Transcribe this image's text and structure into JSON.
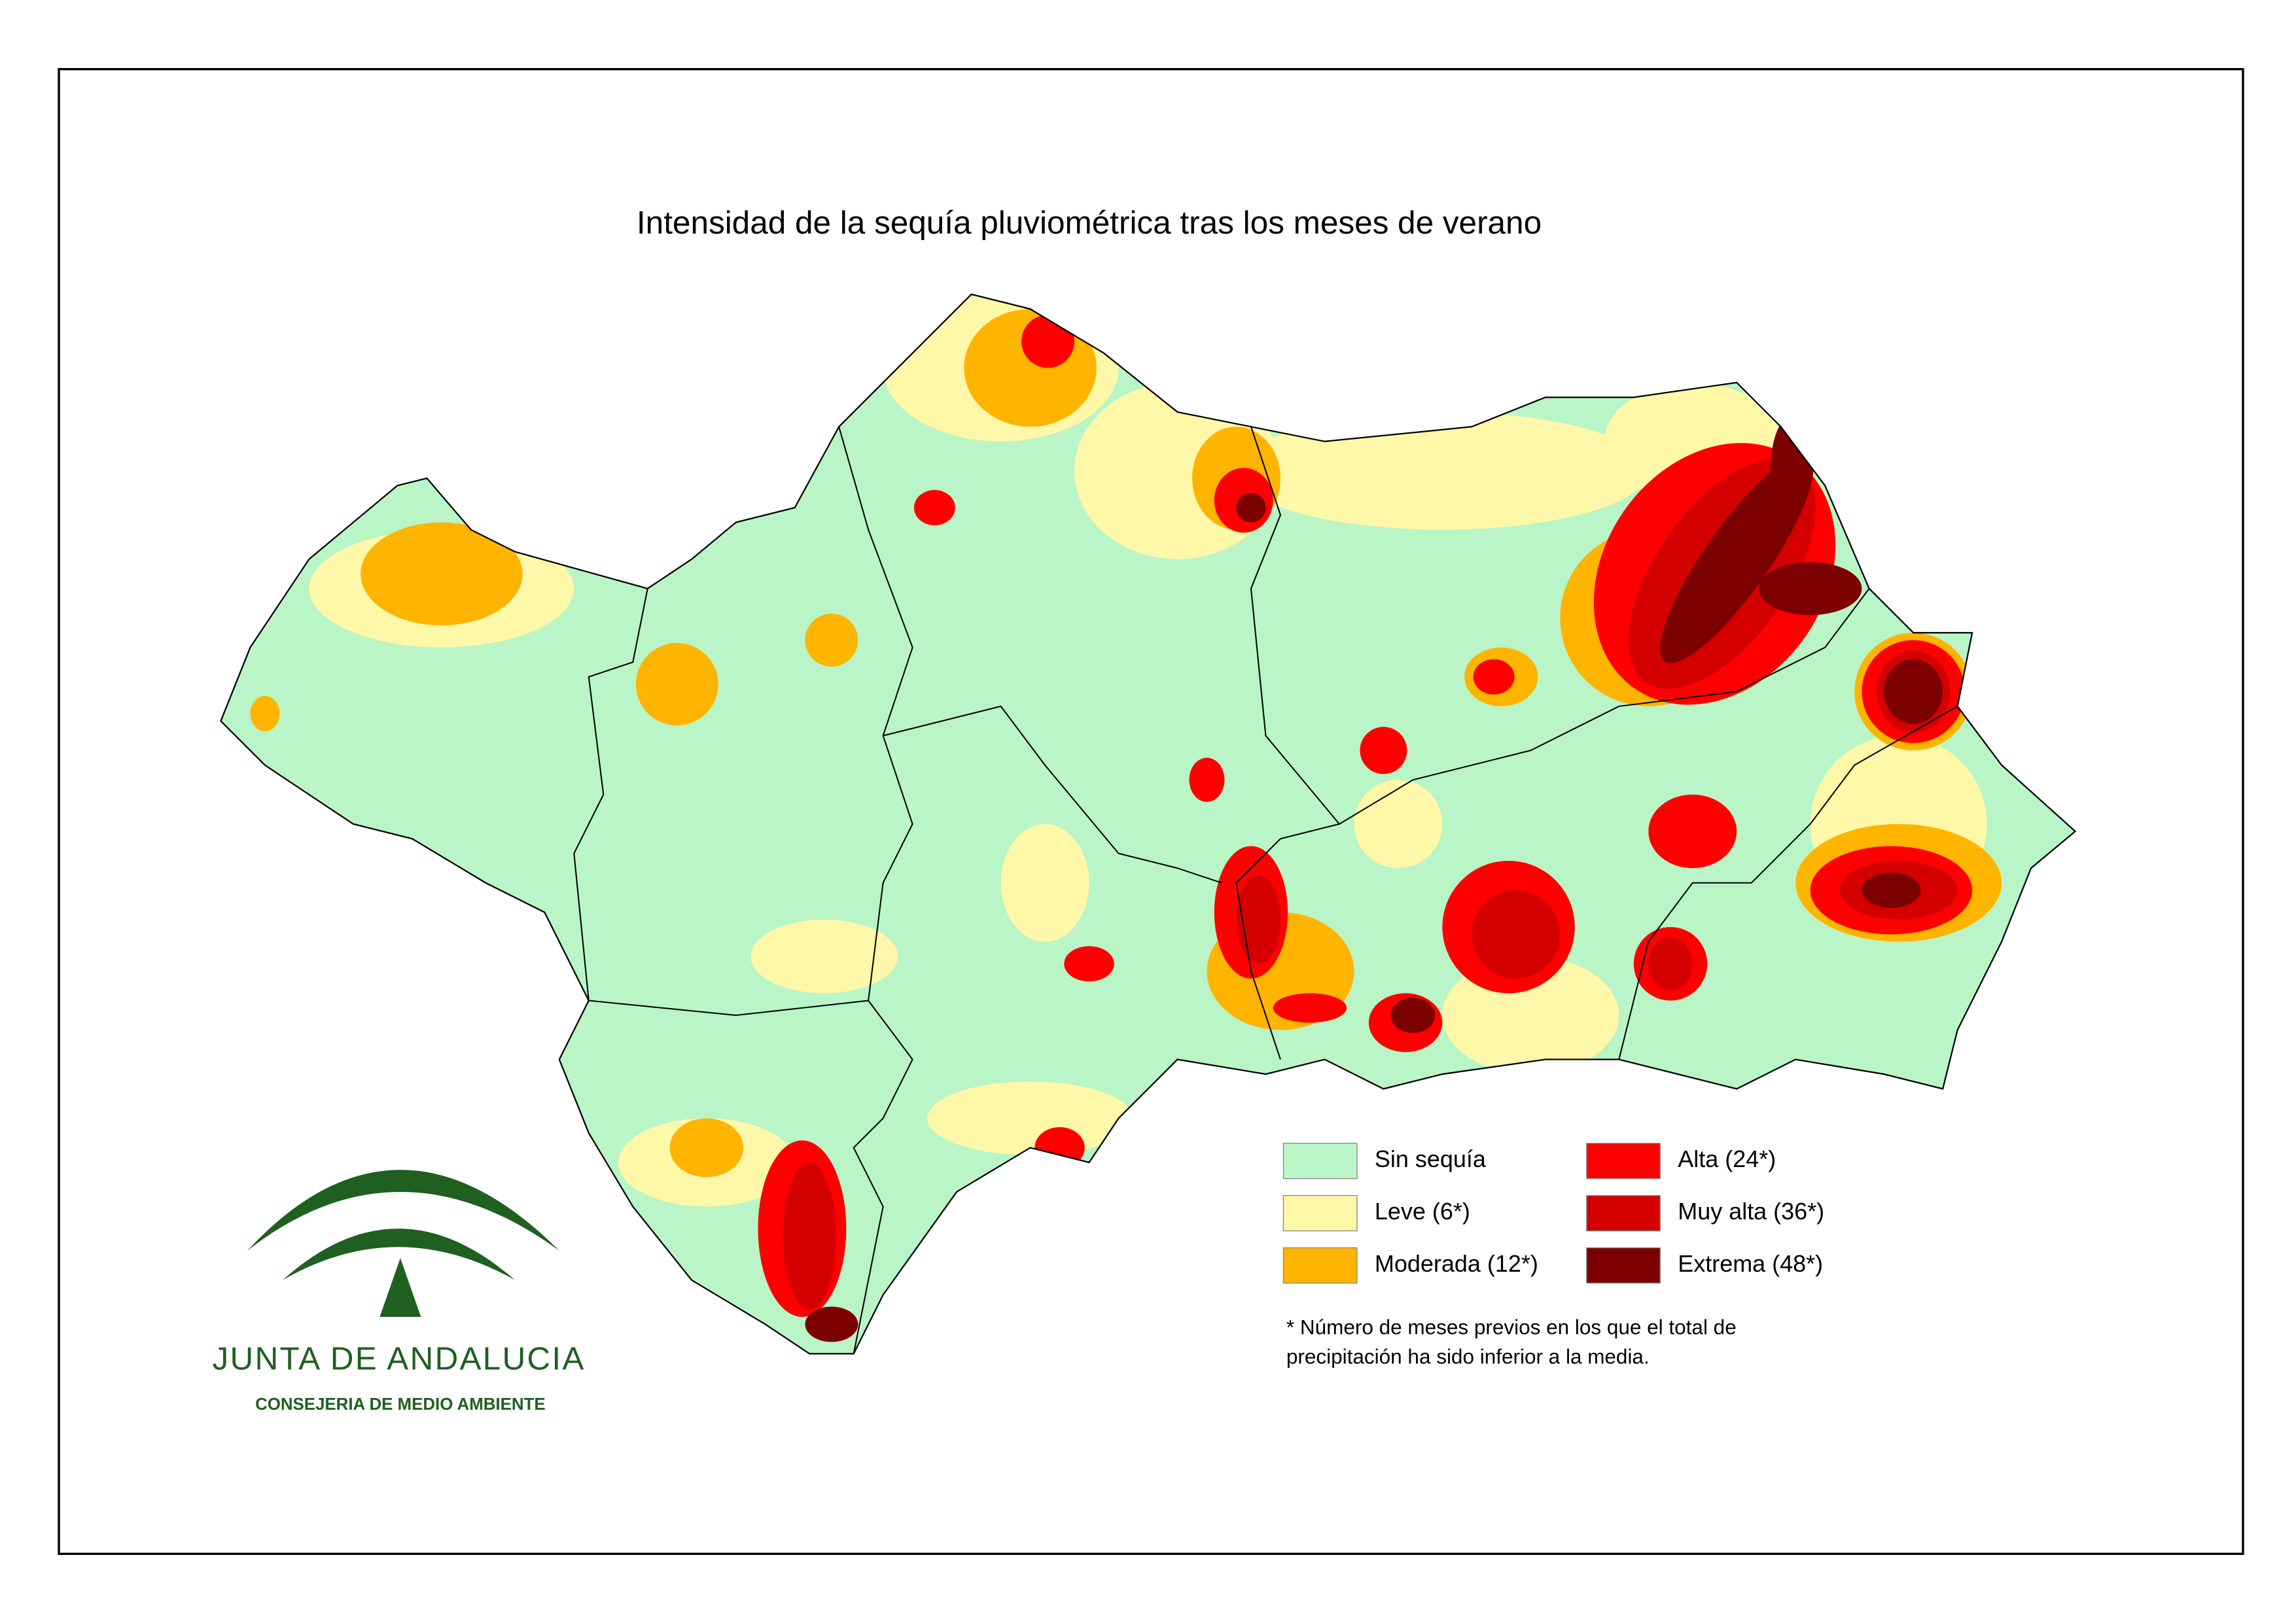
{
  "title": "Intensidad de la sequía pluviométrica tras los meses de verano",
  "legend": [
    {
      "label": "Sin sequía",
      "color": "#b9f5c6"
    },
    {
      "label": "Leve (6*)",
      "color": "#fff8a8"
    },
    {
      "label": "Moderada (12*)",
      "color": "#ffb400"
    },
    {
      "label": "Alta (24*)",
      "color": "#ff0000"
    },
    {
      "label": "Muy alta (36*)",
      "color": "#d40000"
    },
    {
      "label": "Extrema (48*)",
      "color": "#7d0000"
    }
  ],
  "footnote": [
    "* Número de meses previos en los que el total de",
    "precipitación ha sido inferior a la media."
  ],
  "logo": {
    "name": "JUNTA DE ANDALUCIA",
    "department": "CONSEJERIA DE MEDIO AMBIENTE"
  }
}
